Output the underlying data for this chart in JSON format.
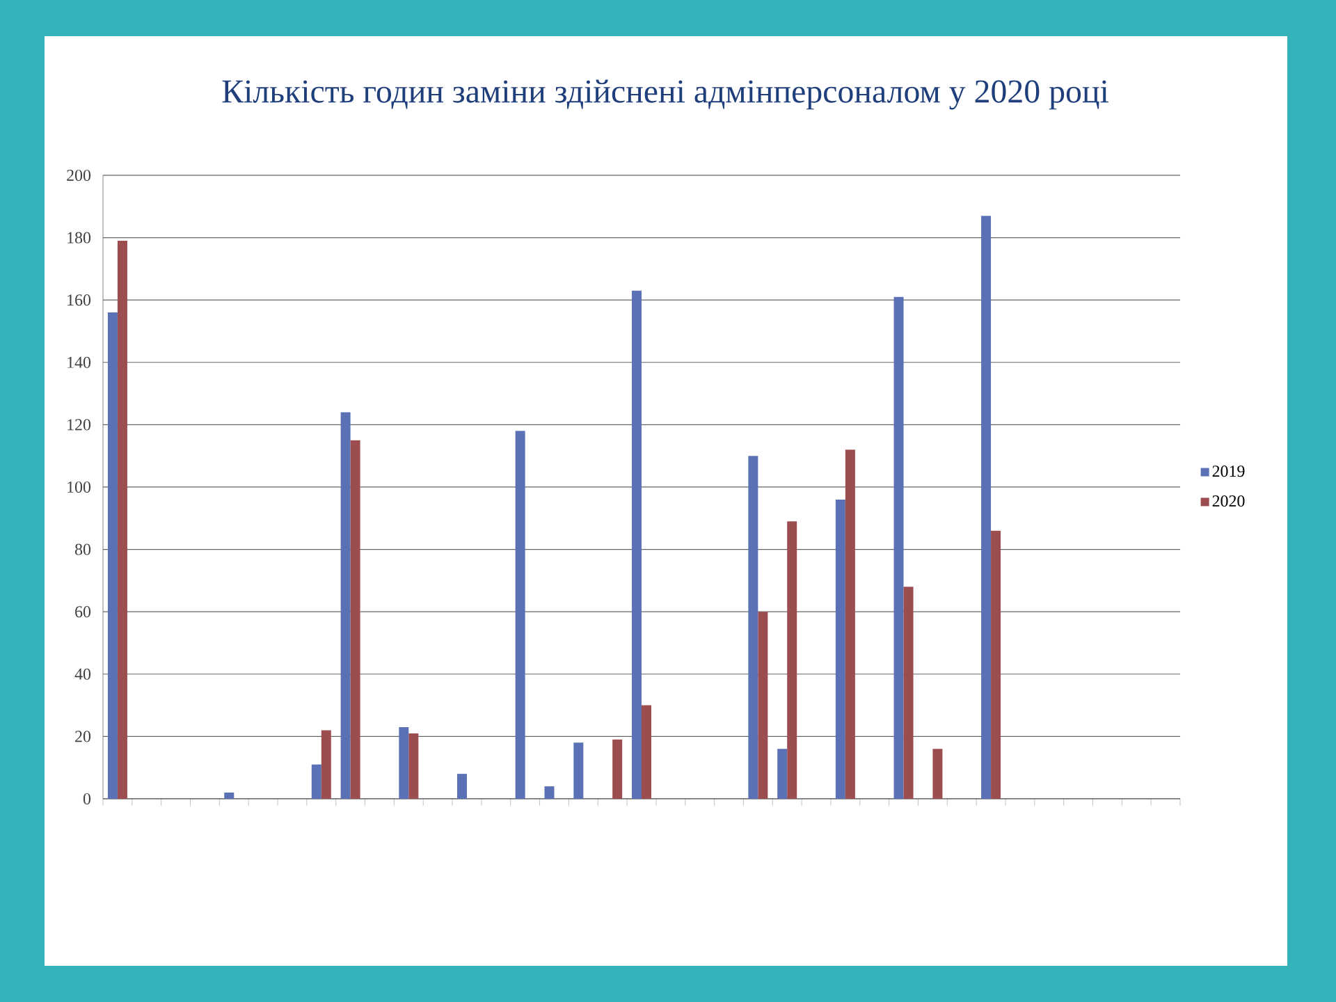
{
  "chart_data": {
    "type": "bar",
    "title": "Кількість годин заміни  здійснені адмінперсоналом у 2020 році",
    "categories": [
      null,
      null,
      null,
      null,
      null,
      null,
      null,
      null,
      null,
      null,
      null,
      null,
      null,
      null,
      null,
      null,
      null,
      null,
      null,
      null,
      null,
      null,
      null,
      null,
      null,
      null,
      null,
      null,
      null,
      null,
      null,
      null,
      null,
      null,
      null,
      null,
      null
    ],
    "series": [
      {
        "name": "2019",
        "color": "#5a72b5",
        "values": [
          156,
          null,
          null,
          null,
          2,
          null,
          null,
          11,
          124,
          null,
          23,
          null,
          8,
          null,
          118,
          4,
          18,
          null,
          163,
          null,
          null,
          null,
          110,
          16,
          null,
          96,
          null,
          161,
          null,
          null,
          187,
          null,
          null,
          null,
          null,
          null,
          null
        ]
      },
      {
        "name": "2020",
        "color": "#9c4d50",
        "values": [
          179,
          null,
          null,
          null,
          null,
          null,
          null,
          22,
          115,
          null,
          21,
          null,
          null,
          null,
          null,
          null,
          null,
          19,
          30,
          null,
          null,
          null,
          60,
          89,
          null,
          112,
          null,
          68,
          16,
          null,
          86,
          null,
          null,
          null,
          null,
          null,
          null
        ]
      }
    ],
    "ylim": [
      0,
      200
    ],
    "yticks": [
      0,
      20,
      40,
      60,
      80,
      100,
      120,
      140,
      160,
      180,
      200
    ],
    "grid": "y",
    "legend": "right"
  }
}
